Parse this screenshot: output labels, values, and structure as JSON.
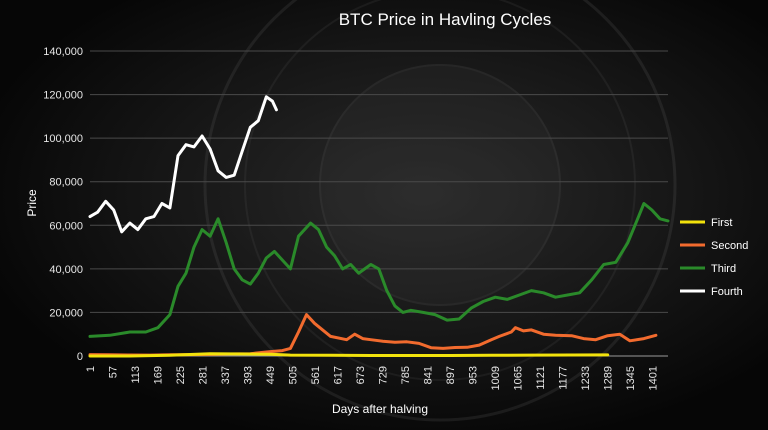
{
  "chart_data": {
    "type": "line",
    "title": "BTC Price in Havling Cycles",
    "xlabel": "Days after halving",
    "ylabel": "Price",
    "ylim": [
      0,
      140000
    ],
    "xlim": [
      1,
      1440
    ],
    "yticks": [
      {
        "value": 0,
        "label": "0"
      },
      {
        "value": 20000,
        "label": "20,000"
      },
      {
        "value": 40000,
        "label": "40,000"
      },
      {
        "value": 60000,
        "label": "60,000"
      },
      {
        "value": 80000,
        "label": "80,000"
      },
      {
        "value": 100000,
        "label": "100,000"
      },
      {
        "value": 120000,
        "label": "120,000"
      },
      {
        "value": 140000,
        "label": "140,000"
      }
    ],
    "xticks": [
      "1",
      "57",
      "113",
      "169",
      "225",
      "281",
      "337",
      "393",
      "449",
      "505",
      "561",
      "617",
      "673",
      "729",
      "785",
      "841",
      "897",
      "953",
      "1009",
      "1065",
      "1121",
      "1177",
      "1233",
      "1289",
      "1345",
      "1401"
    ],
    "grid": true,
    "legend_position": "right",
    "series": [
      {
        "name": "First",
        "color": "#f2e20c",
        "points": [
          [
            1,
            12
          ],
          [
            100,
            12
          ],
          [
            200,
            300
          ],
          [
            250,
            700
          ],
          [
            300,
            1000
          ],
          [
            390,
            900
          ],
          [
            450,
            800
          ],
          [
            500,
            400
          ],
          [
            600,
            300
          ],
          [
            700,
            250
          ],
          [
            800,
            250
          ],
          [
            900,
            250
          ],
          [
            1000,
            300
          ],
          [
            1100,
            400
          ],
          [
            1200,
            450
          ],
          [
            1290,
            500
          ]
        ]
      },
      {
        "name": "Second",
        "color": "#f26b2e",
        "points": [
          [
            1,
            650
          ],
          [
            50,
            580
          ],
          [
            100,
            450
          ],
          [
            150,
            430
          ],
          [
            200,
            600
          ],
          [
            250,
            650
          ],
          [
            300,
            740
          ],
          [
            350,
            920
          ],
          [
            400,
            1050
          ],
          [
            450,
            2000
          ],
          [
            480,
            2500
          ],
          [
            500,
            3500
          ],
          [
            520,
            11000
          ],
          [
            540,
            19000
          ],
          [
            560,
            15000
          ],
          [
            580,
            12000
          ],
          [
            600,
            9000
          ],
          [
            640,
            7500
          ],
          [
            660,
            10000
          ],
          [
            680,
            8000
          ],
          [
            700,
            7500
          ],
          [
            730,
            6800
          ],
          [
            760,
            6300
          ],
          [
            790,
            6500
          ],
          [
            820,
            5800
          ],
          [
            850,
            3800
          ],
          [
            880,
            3500
          ],
          [
            910,
            3900
          ],
          [
            940,
            4000
          ],
          [
            970,
            5000
          ],
          [
            1000,
            7500
          ],
          [
            1020,
            9000
          ],
          [
            1050,
            11000
          ],
          [
            1060,
            13000
          ],
          [
            1080,
            11500
          ],
          [
            1100,
            12000
          ],
          [
            1130,
            10000
          ],
          [
            1160,
            9500
          ],
          [
            1200,
            9300
          ],
          [
            1230,
            8000
          ],
          [
            1260,
            7500
          ],
          [
            1290,
            9300
          ],
          [
            1320,
            10000
          ],
          [
            1345,
            7000
          ],
          [
            1380,
            8000
          ],
          [
            1410,
            9500
          ]
        ]
      },
      {
        "name": "Third",
        "color": "#2a8a2a",
        "points": [
          [
            1,
            9000
          ],
          [
            50,
            9500
          ],
          [
            100,
            11000
          ],
          [
            140,
            11000
          ],
          [
            170,
            13000
          ],
          [
            200,
            19000
          ],
          [
            220,
            32000
          ],
          [
            240,
            38000
          ],
          [
            260,
            50000
          ],
          [
            280,
            58000
          ],
          [
            300,
            55000
          ],
          [
            320,
            63000
          ],
          [
            340,
            52000
          ],
          [
            360,
            40000
          ],
          [
            380,
            35000
          ],
          [
            400,
            33000
          ],
          [
            420,
            38000
          ],
          [
            440,
            45000
          ],
          [
            460,
            48000
          ],
          [
            480,
            44000
          ],
          [
            500,
            40000
          ],
          [
            520,
            55000
          ],
          [
            550,
            61000
          ],
          [
            570,
            58000
          ],
          [
            590,
            50000
          ],
          [
            610,
            46000
          ],
          [
            630,
            40000
          ],
          [
            650,
            42000
          ],
          [
            670,
            38000
          ],
          [
            700,
            42000
          ],
          [
            720,
            40000
          ],
          [
            740,
            30000
          ],
          [
            760,
            23000
          ],
          [
            780,
            20000
          ],
          [
            800,
            21000
          ],
          [
            830,
            20000
          ],
          [
            860,
            19000
          ],
          [
            890,
            16500
          ],
          [
            920,
            17000
          ],
          [
            950,
            22000
          ],
          [
            980,
            25000
          ],
          [
            1010,
            27000
          ],
          [
            1040,
            26000
          ],
          [
            1070,
            28000
          ],
          [
            1100,
            30000
          ],
          [
            1130,
            29000
          ],
          [
            1160,
            27000
          ],
          [
            1190,
            28000
          ],
          [
            1220,
            29000
          ],
          [
            1250,
            35000
          ],
          [
            1280,
            42000
          ],
          [
            1310,
            43000
          ],
          [
            1340,
            52000
          ],
          [
            1360,
            61000
          ],
          [
            1380,
            70000
          ],
          [
            1400,
            67000
          ],
          [
            1420,
            63000
          ],
          [
            1440,
            62000
          ]
        ]
      },
      {
        "name": "Fourth",
        "color": "#ffffff",
        "points": [
          [
            1,
            64000
          ],
          [
            20,
            66000
          ],
          [
            40,
            71000
          ],
          [
            60,
            67000
          ],
          [
            80,
            57000
          ],
          [
            100,
            61000
          ],
          [
            120,
            58000
          ],
          [
            140,
            63000
          ],
          [
            160,
            64000
          ],
          [
            180,
            70000
          ],
          [
            200,
            68000
          ],
          [
            220,
            92000
          ],
          [
            240,
            97000
          ],
          [
            260,
            96000
          ],
          [
            280,
            101000
          ],
          [
            300,
            95000
          ],
          [
            320,
            85000
          ],
          [
            340,
            82000
          ],
          [
            360,
            83000
          ],
          [
            380,
            94000
          ],
          [
            400,
            105000
          ],
          [
            420,
            108000
          ],
          [
            440,
            119000
          ],
          [
            455,
            117000
          ],
          [
            465,
            113000
          ]
        ]
      }
    ]
  }
}
